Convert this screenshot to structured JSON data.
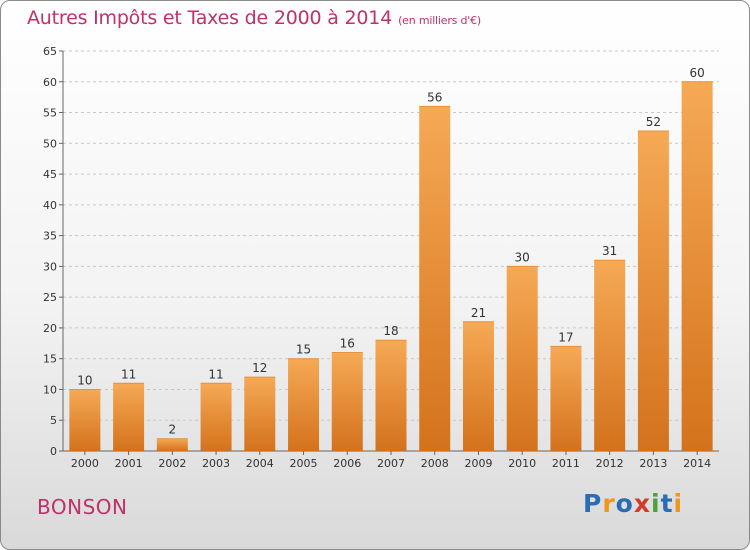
{
  "header": {
    "title": "Autres Impôts et Taxes de 2000 à 2014",
    "unit": "(en milliers d'€)"
  },
  "footer": {
    "city": "BONSON",
    "logo": [
      "P",
      "r",
      "o",
      "x",
      "i",
      "t",
      "i"
    ]
  },
  "colors": {
    "title": "#c0306a",
    "bar_light": "#f6a955",
    "bar_dark": "#d4721c",
    "logo": [
      "#2a6db5",
      "#f0961e",
      "#2a6db5",
      "#d43a2a",
      "#4aa33a",
      "#2a6db5",
      "#f0961e"
    ]
  },
  "chart_data": {
    "type": "bar",
    "categories": [
      "2000",
      "2001",
      "2002",
      "2003",
      "2004",
      "2005",
      "2006",
      "2007",
      "2008",
      "2009",
      "2010",
      "2011",
      "2012",
      "2013",
      "2014"
    ],
    "values": [
      10,
      11,
      2,
      11,
      12,
      15,
      16,
      18,
      56,
      21,
      30,
      17,
      31,
      52,
      60
    ],
    "data_labels": [
      "10",
      "11",
      "2",
      "11",
      "12",
      "15",
      "16",
      "18",
      "56",
      "21",
      "30",
      "17",
      "31",
      "52",
      "60"
    ],
    "yticks": [
      "0",
      "5",
      "10",
      "15",
      "20",
      "25",
      "30",
      "35",
      "40",
      "45",
      "50",
      "55",
      "60",
      "65"
    ],
    "ylim": [
      0,
      65
    ],
    "grid": "horizontal dashed",
    "legend": "none"
  }
}
